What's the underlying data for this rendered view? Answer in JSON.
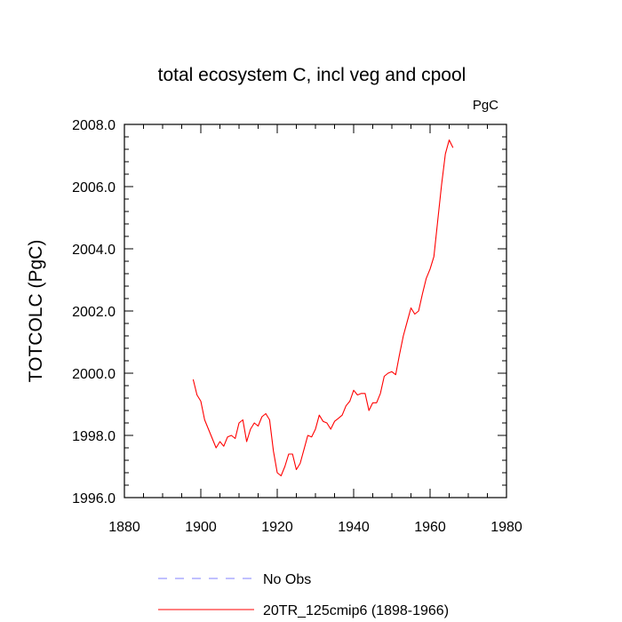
{
  "chart_data": {
    "type": "line",
    "title": "total ecosystem C, incl veg and cpool",
    "units_label": "PgC",
    "xlabel": "",
    "ylabel": "TOTCOLC  (PgC)",
    "xlim": [
      1880,
      1980
    ],
    "ylim": [
      1996.0,
      2008.0
    ],
    "x_ticks": [
      1880,
      1900,
      1920,
      1940,
      1960,
      1980
    ],
    "x_tick_labels": [
      "1880",
      "1900",
      "1920",
      "1940",
      "1960",
      "1980"
    ],
    "y_ticks": [
      1996.0,
      1998.0,
      2000.0,
      2002.0,
      2004.0,
      2006.0,
      2008.0
    ],
    "y_tick_labels": [
      "1996.0",
      "1998.0",
      "2000.0",
      "2002.0",
      "2004.0",
      "2006.0",
      "2008.0"
    ],
    "grid": false,
    "legend_position": "bottom",
    "series": [
      {
        "name": "No Obs",
        "color": "#8080ff",
        "dashed": true,
        "x": [],
        "y": []
      },
      {
        "name": "20TR_125cmip6 (1898-1966)",
        "color": "#ff0000",
        "dashed": false,
        "x": [
          1898,
          1899,
          1900,
          1901,
          1902,
          1903,
          1904,
          1905,
          1906,
          1907,
          1908,
          1909,
          1910,
          1911,
          1912,
          1913,
          1914,
          1915,
          1916,
          1917,
          1918,
          1919,
          1920,
          1921,
          1922,
          1923,
          1924,
          1925,
          1926,
          1927,
          1928,
          1929,
          1930,
          1931,
          1932,
          1933,
          1934,
          1935,
          1936,
          1937,
          1938,
          1939,
          1940,
          1941,
          1942,
          1943,
          1944,
          1945,
          1946,
          1947,
          1948,
          1949,
          1950,
          1951,
          1952,
          1953,
          1954,
          1955,
          1956,
          1957,
          1958,
          1959,
          1960,
          1961,
          1962,
          1963,
          1964,
          1965,
          1966
        ],
        "y": [
          1999.8,
          1999.3,
          1999.1,
          1998.5,
          1998.2,
          1997.9,
          1997.6,
          1997.8,
          1997.65,
          1997.95,
          1998.0,
          1997.9,
          1998.4,
          1998.5,
          1997.8,
          1998.2,
          1998.4,
          1998.3,
          1998.6,
          1998.7,
          1998.5,
          1997.5,
          1996.8,
          1996.7,
          1997.0,
          1997.4,
          1997.4,
          1996.9,
          1997.1,
          1997.55,
          1998.0,
          1997.95,
          1998.2,
          1998.65,
          1998.45,
          1998.4,
          1998.2,
          1998.45,
          1998.55,
          1998.65,
          1998.95,
          1999.1,
          1999.45,
          1999.3,
          1999.35,
          1999.35,
          1998.8,
          1999.05,
          1999.05,
          1999.35,
          1999.9,
          2000.0,
          2000.05,
          1999.95,
          2000.6,
          2001.2,
          2001.65,
          2002.1,
          2001.9,
          2002.0,
          2002.55,
          2003.05,
          2003.35,
          2003.75,
          2004.9,
          2006.05,
          2007.05,
          2007.5,
          2007.25
        ]
      }
    ]
  }
}
